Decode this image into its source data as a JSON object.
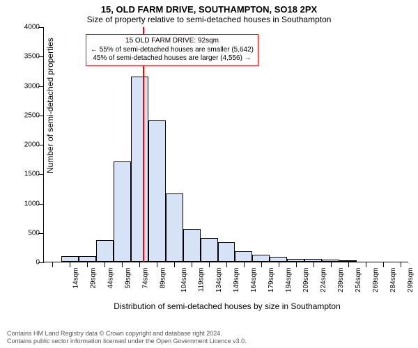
{
  "title_line1": "15, OLD FARM DRIVE, SOUTHAMPTON, SO18 2PX",
  "title_line2": "Size of property relative to semi-detached houses in Southampton",
  "title_fontsize": 13,
  "subtitle_fontsize": 12,
  "chart": {
    "type": "histogram",
    "ylabel": "Number of semi-detached properties",
    "xlabel": "Distribution of semi-detached houses by size in Southampton",
    "label_fontsize": 12,
    "tick_fontsize": 10,
    "ylim_max": 4000,
    "ytick_step": 500,
    "xtick_start": 14,
    "xtick_step": 15,
    "xtick_count": 21,
    "xtick_unit": "sqm",
    "bar_color": "#d6e2f6",
    "bar_border": "#000000",
    "background": "#ffffff",
    "values": [
      0,
      100,
      100,
      370,
      1700,
      3150,
      2400,
      1160,
      560,
      400,
      330,
      180,
      120,
      80,
      50,
      50,
      30,
      20,
      0,
      0,
      0
    ],
    "marker": {
      "x_value": 92,
      "color": "#ff0000",
      "width": 2
    },
    "annotation": {
      "line1": "15 OLD FARM DRIVE: 92sqm",
      "line2": "← 55% of semi-detached houses are smaller (5,642)",
      "line3": "45% of semi-detached houses are larger (4,556) →",
      "border_color": "#ff0000",
      "fontsize": 10
    }
  },
  "footer": {
    "line1": "Contains HM Land Registry data © Crown copyright and database right 2024.",
    "line2": "Contains public sector information licensed under the Open Government Licence v3.0.",
    "fontsize": 9,
    "color": "#555555"
  }
}
